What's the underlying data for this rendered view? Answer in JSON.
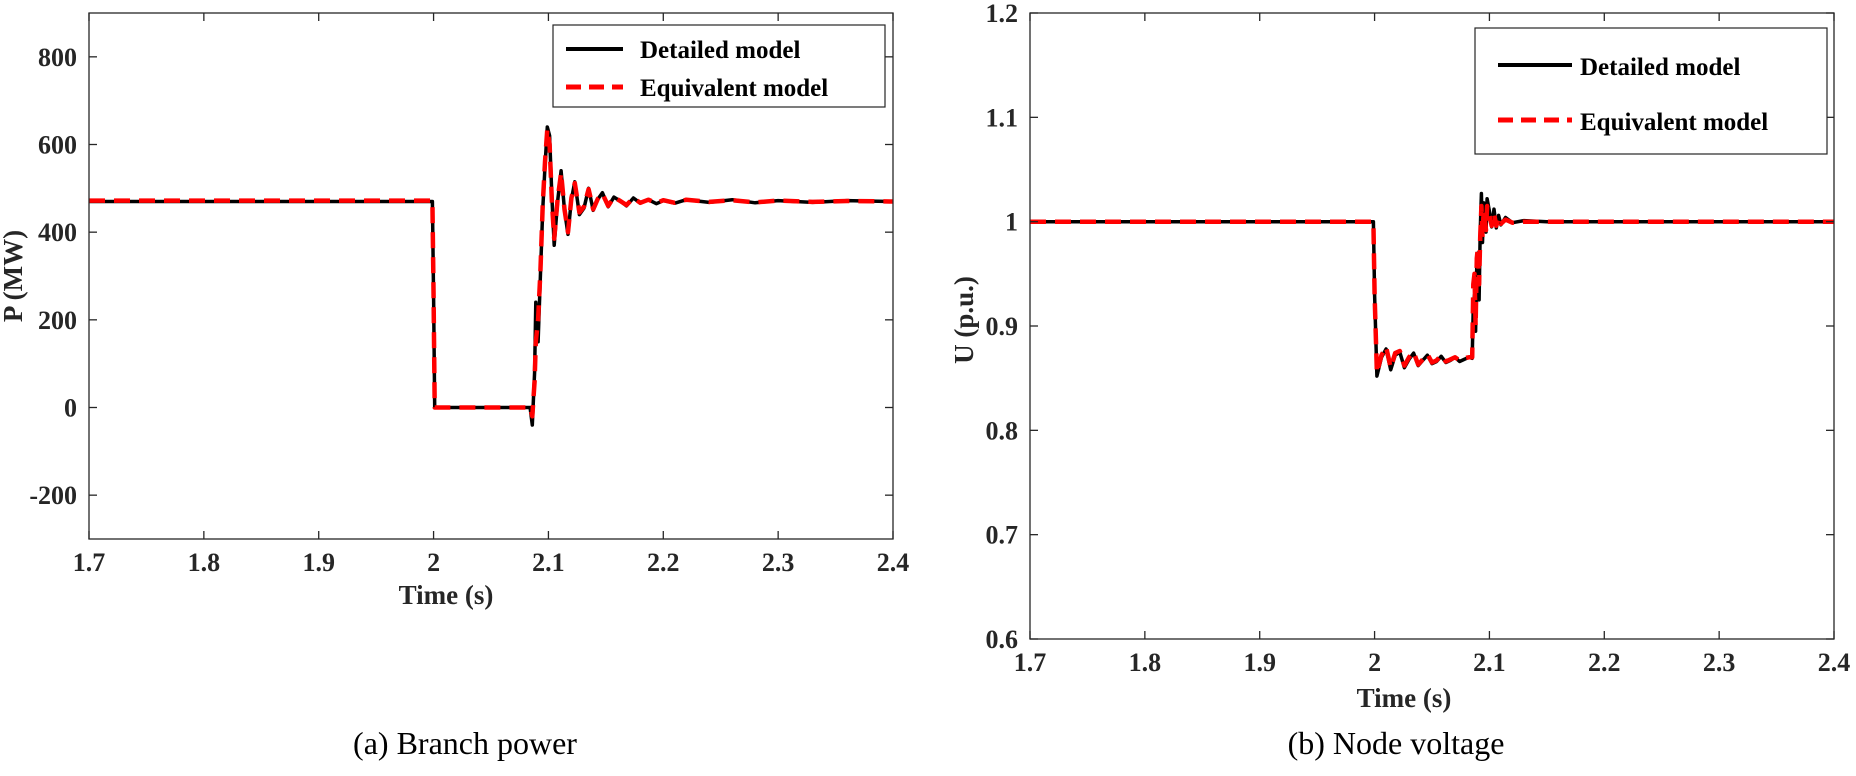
{
  "chart_data": [
    {
      "type": "line",
      "caption": "(a) Branch power",
      "xlabel": "Time (s)",
      "ylabel": "P (MW)",
      "xlim": [
        1.7,
        2.4
      ],
      "ylim": [
        -300,
        900
      ],
      "xticks": [
        1.7,
        1.8,
        1.9,
        2.0,
        2.1,
        2.2,
        2.3,
        2.4
      ],
      "xtick_labels": [
        "1.7",
        "1.8",
        "1.9",
        "2",
        "2.1",
        "2.2",
        "2.3",
        "2.4"
      ],
      "yticks": [
        -200,
        0,
        200,
        400,
        600,
        800
      ],
      "ytick_labels": [
        "-200",
        "0",
        "200",
        "400",
        "600",
        "800"
      ],
      "grid": false,
      "legend_position": "top-right",
      "series": [
        {
          "name": "Detailed model",
          "color": "#000000",
          "style": "solid",
          "x": [
            1.7,
            1.999,
            2.0,
            2.001,
            2.084,
            2.086,
            2.088,
            2.089,
            2.091,
            2.093,
            2.095,
            2.097,
            2.099,
            2.101,
            2.103,
            2.105,
            2.108,
            2.111,
            2.114,
            2.117,
            2.12,
            2.123,
            2.127,
            2.131,
            2.135,
            2.139,
            2.143,
            2.147,
            2.152,
            2.157,
            2.162,
            2.168,
            2.174,
            2.18,
            2.187,
            2.194,
            2.2,
            2.21,
            2.22,
            2.24,
            2.26,
            2.28,
            2.3,
            2.33,
            2.36,
            2.4
          ],
          "y": [
            470,
            470,
            250,
            0,
            0,
            -40,
            80,
            240,
            150,
            300,
            450,
            550,
            640,
            620,
            480,
            370,
            470,
            540,
            450,
            395,
            475,
            515,
            440,
            455,
            500,
            450,
            475,
            490,
            458,
            480,
            472,
            460,
            478,
            466,
            474,
            465,
            472,
            466,
            474,
            468,
            474,
            467,
            472,
            468,
            472,
            470
          ]
        },
        {
          "name": "Equivalent model",
          "color": "#ff0000",
          "style": "dashed",
          "x": [
            1.7,
            1.999,
            2.0,
            2.001,
            2.084,
            2.086,
            2.088,
            2.089,
            2.091,
            2.093,
            2.095,
            2.097,
            2.099,
            2.101,
            2.103,
            2.105,
            2.108,
            2.111,
            2.114,
            2.117,
            2.12,
            2.123,
            2.127,
            2.131,
            2.135,
            2.139,
            2.143,
            2.147,
            2.152,
            2.157,
            2.162,
            2.168,
            2.174,
            2.18,
            2.187,
            2.194,
            2.2,
            2.21,
            2.22,
            2.24,
            2.26,
            2.28,
            2.3,
            2.33,
            2.36,
            2.4
          ],
          "y": [
            472,
            472,
            250,
            0,
            0,
            -20,
            60,
            150,
            200,
            310,
            460,
            560,
            635,
            600,
            470,
            385,
            475,
            535,
            452,
            400,
            478,
            512,
            445,
            458,
            498,
            452,
            476,
            488,
            460,
            480,
            472,
            462,
            478,
            467,
            474,
            466,
            473,
            467,
            474,
            469,
            473,
            468,
            472,
            469,
            471,
            470
          ]
        }
      ]
    },
    {
      "type": "line",
      "caption": "(b) Node voltage",
      "xlabel": "Time (s)",
      "ylabel": "U (p.u.)",
      "xlim": [
        1.7,
        2.4
      ],
      "ylim": [
        0.6,
        1.2
      ],
      "xticks": [
        1.7,
        1.8,
        1.9,
        2.0,
        2.1,
        2.2,
        2.3,
        2.4
      ],
      "xtick_labels": [
        "1.7",
        "1.8",
        "1.9",
        "2",
        "2.1",
        "2.2",
        "2.3",
        "2.4"
      ],
      "yticks": [
        0.6,
        0.7,
        0.8,
        0.9,
        1.0,
        1.1,
        1.2
      ],
      "ytick_labels": [
        "0.6",
        "0.7",
        "0.8",
        "0.9",
        "1",
        "1.1",
        "1.2"
      ],
      "grid": false,
      "legend_position": "top-right",
      "series": [
        {
          "name": "Detailed model",
          "color": "#000000",
          "style": "solid",
          "x": [
            1.7,
            1.999,
            2.0,
            2.002,
            2.006,
            2.01,
            2.014,
            2.018,
            2.022,
            2.026,
            2.03,
            2.034,
            2.038,
            2.042,
            2.046,
            2.05,
            2.054,
            2.058,
            2.062,
            2.066,
            2.07,
            2.074,
            2.078,
            2.082,
            2.085,
            2.086,
            2.087,
            2.088,
            2.089,
            2.09,
            2.091,
            2.092,
            2.093,
            2.094,
            2.095,
            2.096,
            2.097,
            2.098,
            2.1,
            2.102,
            2.104,
            2.106,
            2.108,
            2.11,
            2.114,
            2.12,
            2.13,
            2.15,
            2.2,
            2.4
          ],
          "y": [
            1.0,
            1.0,
            0.93,
            0.852,
            0.87,
            0.878,
            0.858,
            0.872,
            0.875,
            0.86,
            0.868,
            0.874,
            0.862,
            0.867,
            0.872,
            0.864,
            0.866,
            0.871,
            0.865,
            0.867,
            0.87,
            0.866,
            0.868,
            0.87,
            0.869,
            0.92,
            0.93,
            0.895,
            0.96,
            0.97,
            0.925,
            0.99,
            1.027,
            0.98,
            1.018,
            1.005,
            0.99,
            1.022,
            1.01,
            0.995,
            1.012,
            0.994,
            1.006,
            0.997,
            1.004,
            0.999,
            1.001,
            1.0,
            1.0,
            1.0
          ]
        },
        {
          "name": "Equivalent model",
          "color": "#ff0000",
          "style": "dashed",
          "x": [
            1.7,
            1.999,
            2.0,
            2.002,
            2.006,
            2.01,
            2.014,
            2.018,
            2.022,
            2.026,
            2.03,
            2.034,
            2.038,
            2.042,
            2.046,
            2.05,
            2.054,
            2.058,
            2.062,
            2.066,
            2.07,
            2.074,
            2.078,
            2.082,
            2.085,
            2.086,
            2.087,
            2.088,
            2.089,
            2.09,
            2.091,
            2.092,
            2.093,
            2.094,
            2.095,
            2.096,
            2.097,
            2.098,
            2.1,
            2.102,
            2.104,
            2.106,
            2.108,
            2.11,
            2.114,
            2.12,
            2.13,
            2.15,
            2.2,
            2.4
          ],
          "y": [
            1.0,
            1.0,
            0.93,
            0.855,
            0.872,
            0.88,
            0.86,
            0.874,
            0.876,
            0.862,
            0.87,
            0.875,
            0.863,
            0.868,
            0.873,
            0.865,
            0.867,
            0.872,
            0.866,
            0.868,
            0.87,
            0.867,
            0.869,
            0.87,
            0.87,
            0.94,
            0.95,
            0.9,
            0.965,
            0.975,
            0.94,
            0.985,
            1.015,
            0.985,
            1.012,
            1.002,
            0.992,
            1.015,
            1.006,
            0.996,
            1.008,
            0.996,
            1.004,
            0.998,
            1.002,
            0.999,
            1.0,
            1.0,
            1.0,
            1.0
          ]
        }
      ]
    }
  ]
}
